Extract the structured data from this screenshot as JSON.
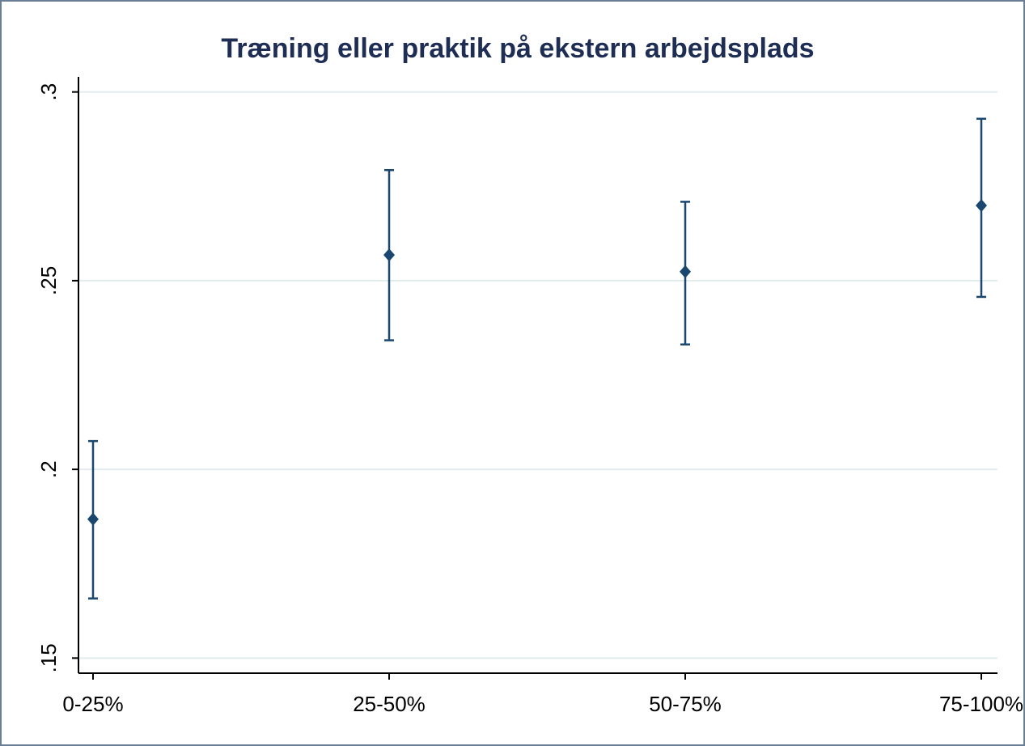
{
  "chart_data": {
    "type": "errorbar",
    "title": "Træning eller praktik på ekstern arbejdsplads",
    "categories": [
      "0-25%",
      "25-50%",
      "50-75%",
      "75-100%"
    ],
    "values": [
      0.1868,
      0.2568,
      0.2524,
      0.2699
    ],
    "lower": [
      0.1658,
      0.2342,
      0.2331,
      0.2457
    ],
    "upper": [
      0.2075,
      0.2793,
      0.2709,
      0.2929
    ],
    "color": "#1a476f",
    "ylim": [
      0.146,
      0.304
    ],
    "yticks": [
      {
        "value": 0.15,
        "label": ".15"
      },
      {
        "value": 0.2,
        "label": ".2"
      },
      {
        "value": 0.25,
        "label": ".25"
      },
      {
        "value": 0.3,
        "label": ".3"
      }
    ],
    "grid": true
  }
}
